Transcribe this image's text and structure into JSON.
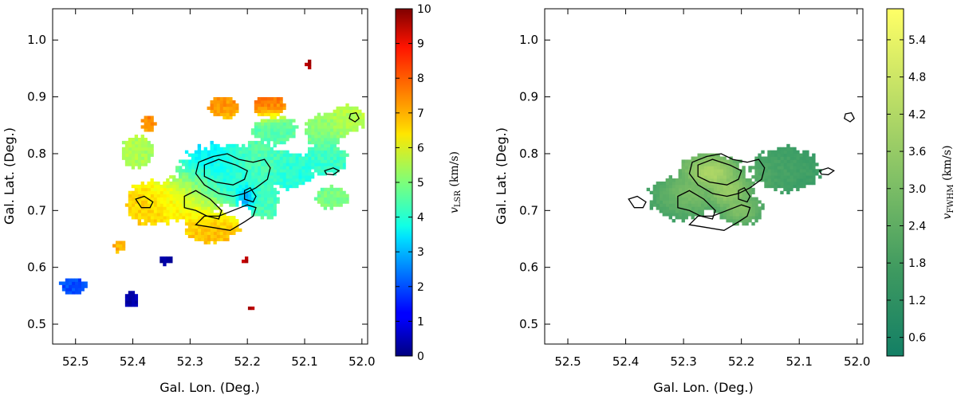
{
  "chart_data": [
    {
      "type": "heatmap",
      "panel": "left",
      "xlabel": "Gal. Lon. (Deg.)",
      "ylabel": "Gal. Lat. (Deg.)",
      "xlim": [
        52.54,
        51.99
      ],
      "ylim": [
        0.465,
        1.055
      ],
      "x_ticks": [
        "52.5",
        "52.4",
        "52.3",
        "52.2",
        "52.1",
        "52.0"
      ],
      "x_tick_values": [
        52.5,
        52.4,
        52.3,
        52.2,
        52.1,
        52.0
      ],
      "y_ticks": [
        "0.5",
        "0.6",
        "0.7",
        "0.8",
        "0.9",
        "1.0"
      ],
      "y_tick_values": [
        0.5,
        0.6,
        0.7,
        0.8,
        0.9,
        1.0
      ],
      "colorbar": {
        "label_main": "v",
        "label_sub": "LSR",
        "label_unit": " (km/s)",
        "min": 0,
        "max": 10,
        "ticks": [
          "0",
          "1",
          "2",
          "3",
          "4",
          "5",
          "6",
          "7",
          "8",
          "9",
          "10"
        ],
        "tick_values": [
          0,
          1,
          2,
          3,
          4,
          5,
          6,
          7,
          8,
          9,
          10
        ],
        "colormap": "jet"
      },
      "blobs": [
        {
          "lon": 52.24,
          "lat": 0.76,
          "sl": 0.085,
          "sb": 0.055,
          "v": 3.4
        },
        {
          "lon": 52.3,
          "lat": 0.72,
          "sl": 0.06,
          "sb": 0.045,
          "v": 6.3
        },
        {
          "lon": 52.36,
          "lat": 0.71,
          "sl": 0.05,
          "sb": 0.04,
          "v": 6.8
        },
        {
          "lon": 52.26,
          "lat": 0.67,
          "sl": 0.05,
          "sb": 0.03,
          "v": 7.0
        },
        {
          "lon": 52.18,
          "lat": 0.78,
          "sl": 0.05,
          "sb": 0.04,
          "v": 5.2
        },
        {
          "lon": 52.17,
          "lat": 0.72,
          "sl": 0.03,
          "sb": 0.04,
          "v": 4.6
        },
        {
          "lon": 52.2,
          "lat": 0.72,
          "sl": 0.012,
          "sb": 0.018,
          "v": 1.7
        },
        {
          "lon": 52.13,
          "lat": 0.77,
          "sl": 0.05,
          "sb": 0.035,
          "v": 4.0
        },
        {
          "lon": 52.06,
          "lat": 0.79,
          "sl": 0.04,
          "sb": 0.03,
          "v": 4.3
        },
        {
          "lon": 52.15,
          "lat": 0.84,
          "sl": 0.04,
          "sb": 0.025,
          "v": 4.6
        },
        {
          "lon": 52.06,
          "lat": 0.84,
          "sl": 0.04,
          "sb": 0.03,
          "v": 5.2
        },
        {
          "lon": 52.02,
          "lat": 0.86,
          "sl": 0.03,
          "sb": 0.025,
          "v": 5.6
        },
        {
          "lon": 52.05,
          "lat": 0.72,
          "sl": 0.03,
          "sb": 0.02,
          "v": 5.0
        },
        {
          "lon": 52.39,
          "lat": 0.8,
          "sl": 0.03,
          "sb": 0.03,
          "v": 5.5
        },
        {
          "lon": 52.37,
          "lat": 0.85,
          "sl": 0.012,
          "sb": 0.015,
          "v": 7.5
        },
        {
          "lon": 52.42,
          "lat": 0.635,
          "sl": 0.012,
          "sb": 0.012,
          "v": 7.0
        },
        {
          "lon": 52.5,
          "lat": 0.565,
          "sl": 0.025,
          "sb": 0.015,
          "v": 2.0
        },
        {
          "lon": 52.34,
          "lat": 0.61,
          "sl": 0.012,
          "sb": 0.008,
          "v": 0.3
        },
        {
          "lon": 52.4,
          "lat": 0.54,
          "sl": 0.012,
          "sb": 0.015,
          "v": 0.5
        },
        {
          "lon": 52.2,
          "lat": 0.61,
          "sl": 0.006,
          "sb": 0.008,
          "v": 9.5
        },
        {
          "lon": 52.09,
          "lat": 0.955,
          "sl": 0.005,
          "sb": 0.006,
          "v": 9.6
        },
        {
          "lon": 52.19,
          "lat": 0.525,
          "sl": 0.006,
          "sb": 0.004,
          "v": 9.5
        },
        {
          "lon": 52.24,
          "lat": 0.88,
          "sl": 0.03,
          "sb": 0.02,
          "v": 7.3
        },
        {
          "lon": 52.16,
          "lat": 0.88,
          "sl": 0.03,
          "sb": 0.02,
          "v": 7.6
        }
      ]
    },
    {
      "type": "heatmap",
      "panel": "right",
      "xlabel": "Gal. Lon. (Deg.)",
      "ylabel": "Gal. Lat. (Deg.)",
      "xlim": [
        52.54,
        51.99
      ],
      "ylim": [
        0.465,
        1.055
      ],
      "x_ticks": [
        "52.5",
        "52.4",
        "52.3",
        "52.2",
        "52.1",
        "52.0"
      ],
      "x_tick_values": [
        52.5,
        52.4,
        52.3,
        52.2,
        52.1,
        52.0
      ],
      "y_ticks": [
        "0.5",
        "0.6",
        "0.7",
        "0.8",
        "0.9",
        "1.0"
      ],
      "y_tick_values": [
        0.5,
        0.6,
        0.7,
        0.8,
        0.9,
        1.0
      ],
      "colorbar": {
        "label_main": "v",
        "label_sub": "FWHM",
        "label_unit": " (km/s)",
        "min": 0.3,
        "max": 5.9,
        "ticks": [
          "0.6",
          "1.2",
          "1.8",
          "2.4",
          "3.0",
          "3.6",
          "4.2",
          "4.8",
          "5.4"
        ],
        "tick_values": [
          0.6,
          1.2,
          1.8,
          2.4,
          3.0,
          3.6,
          4.2,
          4.8,
          5.4
        ],
        "colormap": "summer_r"
      },
      "blobs": [
        {
          "lon": 52.25,
          "lat": 0.76,
          "sl": 0.06,
          "sb": 0.04,
          "v": 4.6
        },
        {
          "lon": 52.22,
          "lat": 0.73,
          "sl": 0.05,
          "sb": 0.04,
          "v": 3.6
        },
        {
          "lon": 52.2,
          "lat": 0.7,
          "sl": 0.04,
          "sb": 0.03,
          "v": 3.0
        },
        {
          "lon": 52.3,
          "lat": 0.72,
          "sl": 0.06,
          "sb": 0.04,
          "v": 2.4
        },
        {
          "lon": 52.12,
          "lat": 0.77,
          "sl": 0.06,
          "sb": 0.04,
          "v": 1.8
        }
      ],
      "base_value": 1.5
    }
  ]
}
